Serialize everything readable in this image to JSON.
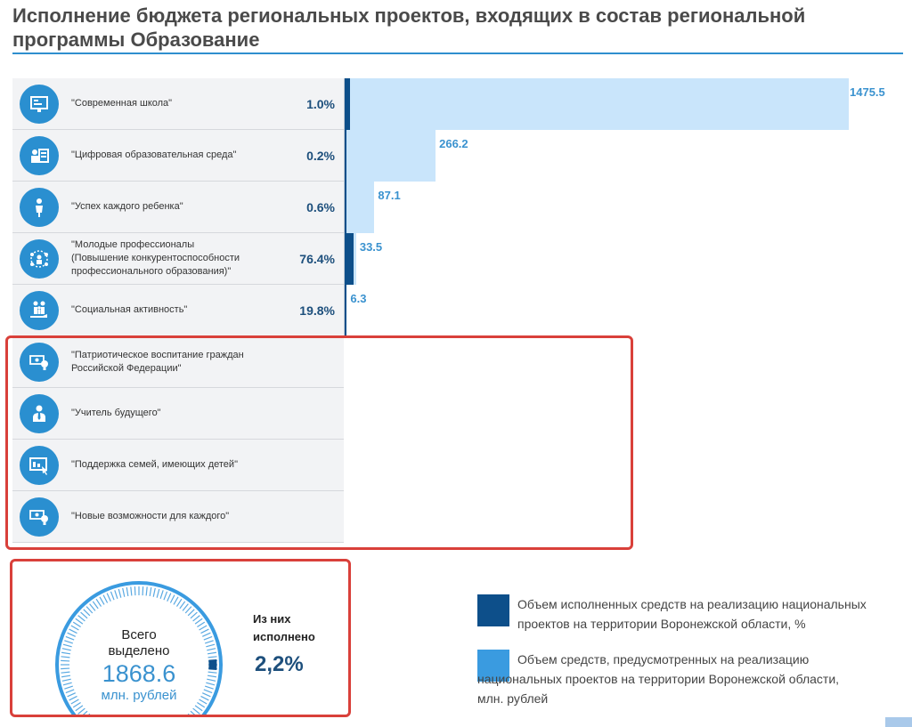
{
  "title": "Исполнение бюджета региональных проектов, входящих в состав региональной программы Образование",
  "colors": {
    "accent": "#2a8fd0",
    "executed": "#0d4f8a",
    "allocated": "#c9e5fb",
    "highlight": "#d9403a"
  },
  "projects": [
    {
      "label": "\"Современная школа\"",
      "pct": "1.0%",
      "icon": "school-board-icon"
    },
    {
      "label": "\"Цифровая образовательная среда\"",
      "pct": "0.2%",
      "icon": "digital-presenter-icon"
    },
    {
      "label": "\"Успех каждого ребенка\"",
      "pct": "0.6%",
      "icon": "child-icon"
    },
    {
      "label": "\"Молодые профессионалы (Повышение конкурентоспособности профессионального образования)\"",
      "pct": "76.4%",
      "icon": "network-people-icon"
    },
    {
      "label": "\"Социальная активность\"",
      "pct": "19.8%",
      "icon": "family-hand-icon"
    },
    {
      "label": "\"Патриотическое воспитание граждан Российской Федерации\"",
      "pct": "",
      "icon": "money-bulb-icon"
    },
    {
      "label": "\"Учитель будущего\"",
      "pct": "",
      "icon": "teacher-icon"
    },
    {
      "label": "\"Поддержка семей, имеющих детей\"",
      "pct": "",
      "icon": "presentation-icon"
    },
    {
      "label": "\"Новые возможности для каждого\"",
      "pct": "",
      "icon": "money-bulb-icon"
    }
  ],
  "chart_data": {
    "type": "bar",
    "orientation": "horizontal",
    "categories": [
      "\"Современная школа\"",
      "\"Цифровая образовательная среда\"",
      "\"Успех каждого ребенка\"",
      "\"Молодые профессионалы\"",
      "\"Социальная активность\""
    ],
    "series": [
      {
        "name": "Объем средств, предусмотренных на реализацию национальных проектов на территории Воронежской области, млн. рублей",
        "values": [
          1475.5,
          266.2,
          87.1,
          33.5,
          6.3
        ]
      },
      {
        "name": "Объем исполненных средств на реализацию национальных проектов на территории Воронежской области, %",
        "values": [
          1.0,
          0.2,
          0.6,
          76.4,
          19.8
        ]
      }
    ],
    "value_labels": [
      "1475.5",
      "266.2",
      "87.1",
      "33.5",
      "6.3"
    ],
    "xlim": [
      0,
      1475.5
    ]
  },
  "summary": {
    "total_label_1": "Всего",
    "total_label_2": "выделено",
    "total_value": "1868.6",
    "total_unit": "млн. рублей",
    "exec_label": "Из них исполнено",
    "exec_value": "2,2%",
    "exec_fraction": 0.022
  },
  "legend": {
    "executed": "Объем исполненных средств на реализацию национальных проектов на территории Воронежской области, %",
    "allocated": "Объем средств, предусмотренных на реализацию национальных проектов на территории Воронежской области, млн. рублей"
  }
}
